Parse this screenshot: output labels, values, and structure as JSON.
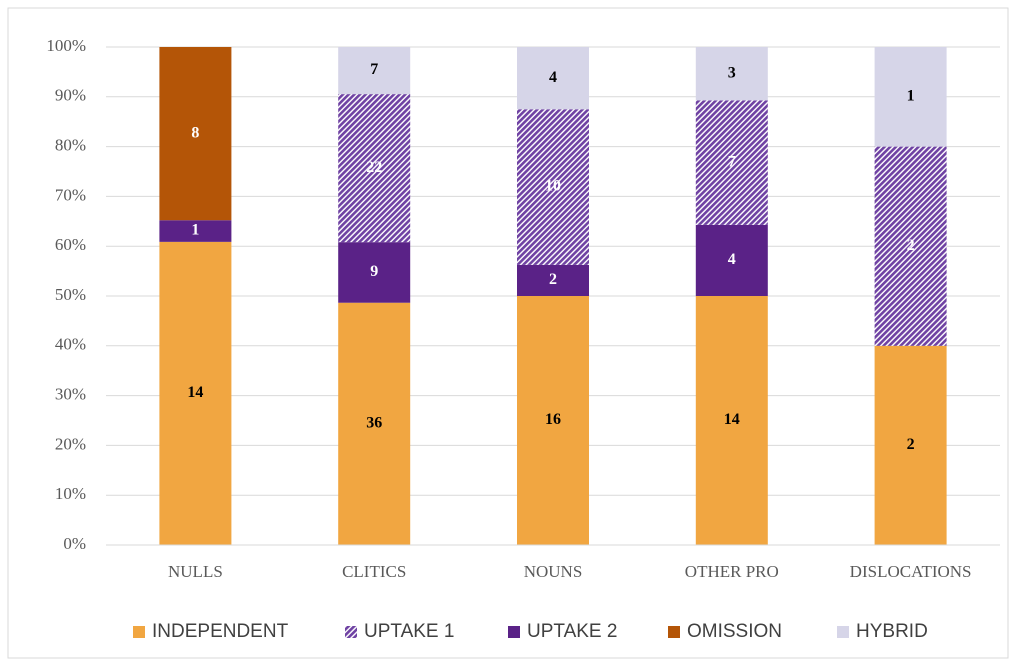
{
  "chart_data": {
    "type": "bar",
    "stacked": "percent",
    "categories": [
      "NULLS",
      "CLITICS",
      "NOUNS",
      "OTHER PRO",
      "DISLOCATIONS"
    ],
    "series": [
      {
        "name": "INDEPENDENT",
        "color": "#f1a641",
        "values": [
          14,
          36,
          16,
          14,
          2
        ]
      },
      {
        "name": "UPTAKE 1",
        "color": "#6f42a3",
        "hatch": true,
        "values": [
          null,
          22,
          10,
          7,
          2
        ]
      },
      {
        "name": "UPTAKE 2",
        "color": "#5a2287",
        "values": [
          1,
          9,
          2,
          4,
          null
        ]
      },
      {
        "name": "OMISSION",
        "color": "#b45507",
        "values": [
          8,
          null,
          null,
          null,
          null
        ]
      },
      {
        "name": "HYBRID",
        "color": "#d6d5e8",
        "values": [
          null,
          7,
          4,
          3,
          1
        ]
      }
    ],
    "ylim": [
      0,
      100
    ],
    "yticks": [
      {
        "value": 0,
        "label": "0%"
      },
      {
        "value": 10,
        "label": "10%"
      },
      {
        "value": 20,
        "label": "20%"
      },
      {
        "value": 30,
        "label": "30%"
      },
      {
        "value": 40,
        "label": "40%"
      },
      {
        "value": 50,
        "label": "50%"
      },
      {
        "value": 60,
        "label": "60%"
      },
      {
        "value": 70,
        "label": "70%"
      },
      {
        "value": 80,
        "label": "80%"
      },
      {
        "value": 90,
        "label": "90%"
      },
      {
        "value": 100,
        "label": "100%"
      }
    ],
    "grid": true,
    "legend": "bottom"
  }
}
